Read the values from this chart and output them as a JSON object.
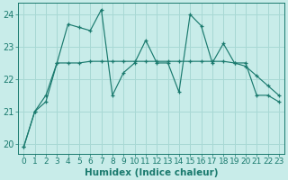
{
  "title": "",
  "xlabel": "Humidex (Indice chaleur)",
  "ylabel": "",
  "bg_color": "#c8ece9",
  "grid_color": "#a8d8d4",
  "line_color": "#1a7a6e",
  "xlim": [
    -0.5,
    23.5
  ],
  "ylim": [
    19.7,
    24.35
  ],
  "yticks": [
    20,
    21,
    22,
    23,
    24
  ],
  "xticks": [
    0,
    1,
    2,
    3,
    4,
    5,
    6,
    7,
    8,
    9,
    10,
    11,
    12,
    13,
    14,
    15,
    16,
    17,
    18,
    19,
    20,
    21,
    22,
    23
  ],
  "xtick_labels": [
    "0",
    "1",
    "2",
    "3",
    "4",
    "5",
    "6",
    "7",
    "8",
    "9",
    "10",
    "11",
    "12",
    "13",
    "14",
    "15",
    "16",
    "17",
    "18",
    "19",
    "20",
    "21",
    "22",
    "23"
  ],
  "series1_x": [
    0,
    1,
    2,
    3,
    4,
    5,
    6,
    7,
    8,
    9,
    10,
    11,
    12,
    13,
    14,
    15,
    16,
    17,
    18,
    19,
    20,
    21,
    22,
    23
  ],
  "series1_y": [
    19.9,
    21.0,
    21.3,
    22.5,
    23.7,
    23.6,
    23.5,
    24.15,
    21.5,
    22.2,
    22.5,
    23.2,
    22.5,
    22.5,
    21.6,
    24.0,
    23.65,
    22.5,
    23.1,
    22.5,
    22.5,
    21.5,
    21.5,
    21.3
  ],
  "series2_x": [
    0,
    1,
    2,
    3,
    4,
    5,
    6,
    7,
    8,
    9,
    10,
    11,
    12,
    13,
    14,
    15,
    16,
    17,
    18,
    19,
    20,
    21,
    22,
    23
  ],
  "series2_y": [
    19.9,
    21.0,
    21.5,
    22.5,
    22.5,
    22.5,
    22.55,
    22.55,
    22.55,
    22.55,
    22.55,
    22.55,
    22.55,
    22.55,
    22.55,
    22.55,
    22.55,
    22.55,
    22.55,
    22.5,
    22.4,
    22.1,
    21.8,
    21.5
  ],
  "tick_fontsize": 6.5,
  "xlabel_fontsize": 7.5
}
